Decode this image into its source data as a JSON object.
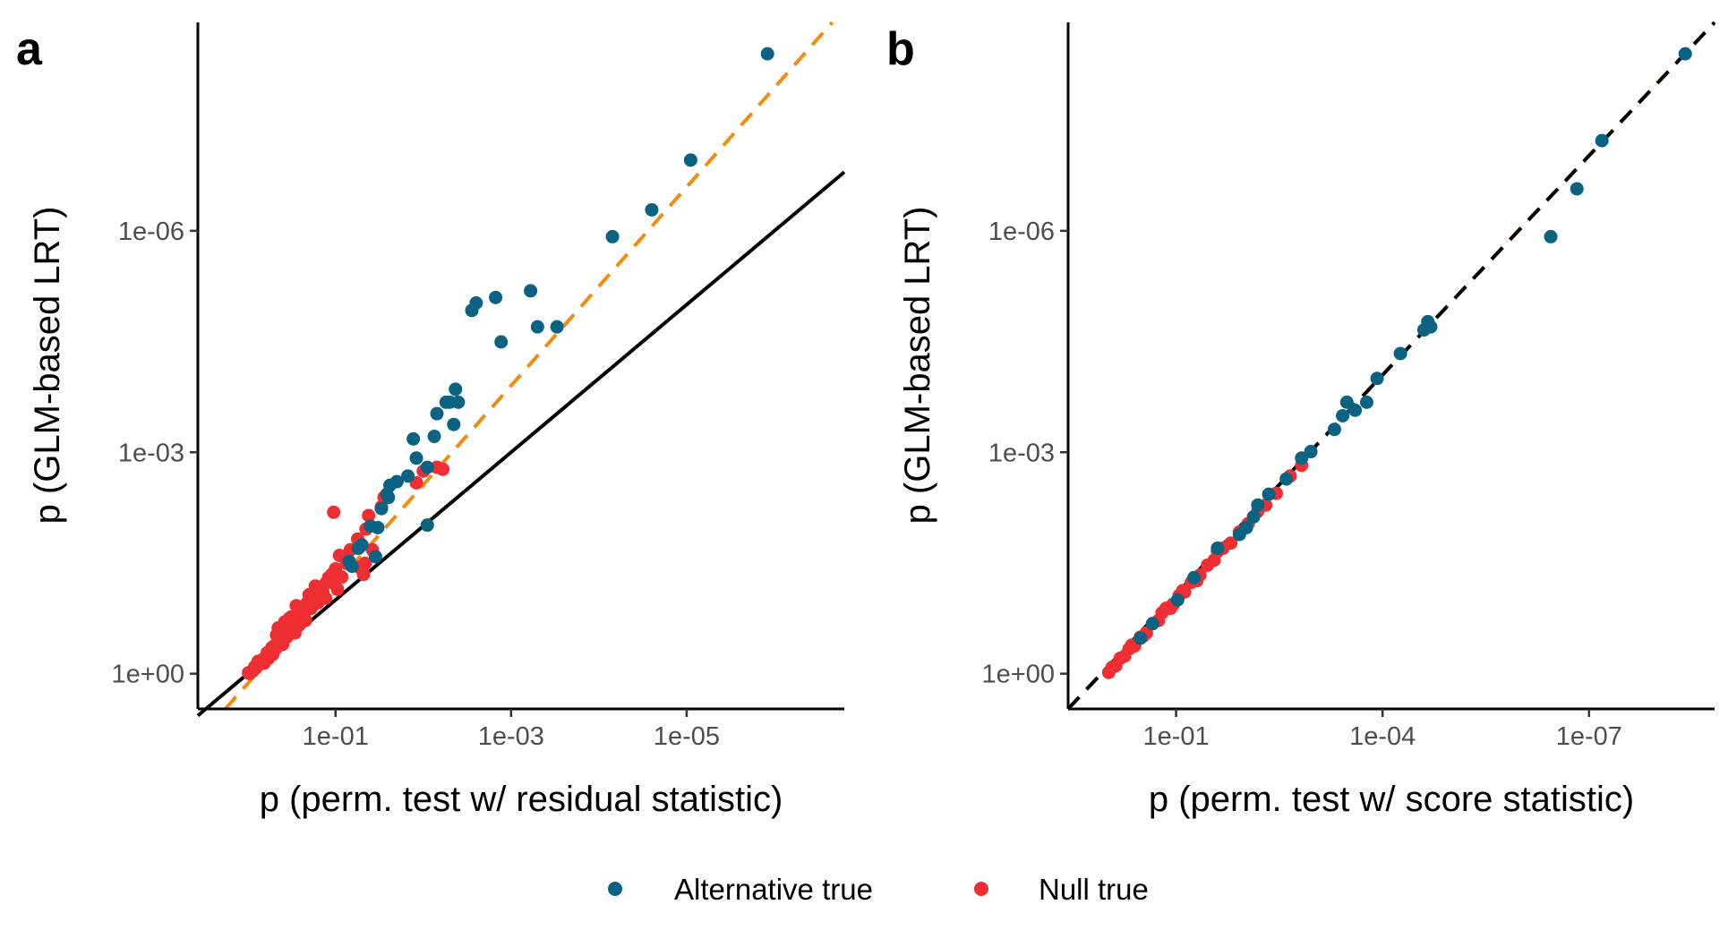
{
  "legend": [
    {
      "label": "Alternative true",
      "color": "#0b6384"
    },
    {
      "label": "Null true",
      "color": "#ee2e31"
    }
  ],
  "reference_line_colors": {
    "identity": "#000000",
    "fit": "#f28c0f"
  },
  "chart_data": [
    {
      "panel": "a",
      "type": "scatter",
      "title": "",
      "xlabel": "p (perm. test w/ residual statistic)",
      "ylabel": "p (GLM-based LRT)",
      "x_scale": "reverse-log10",
      "y_scale": "reverse-log10",
      "xlim": [
        3.7,
        1.6e-07
      ],
      "ylim": [
        3.0,
        1.5e-09
      ],
      "x_ticks": [
        0.1,
        0.001,
        1e-05
      ],
      "x_tick_labels": [
        "1e-01",
        "1e-03",
        "1e-05"
      ],
      "y_ticks": [
        1,
        0.001,
        1e-06
      ],
      "y_tick_labels": [
        "1e+00",
        "1e-03",
        "1e-06"
      ],
      "grid": false,
      "legend_position": "bottom",
      "lines": [
        {
          "kind": "identity",
          "style": "solid",
          "color": "#000000",
          "x": [
            3.7,
            1.6e-07
          ],
          "y": [
            3.7,
            1.6e-07
          ]
        },
        {
          "kind": "fit",
          "style": "dashed",
          "color": "#f28c0f",
          "x": [
            1.8,
            2.2e-07
          ],
          "y": [
            3.0,
            1.5e-09
          ]
        }
      ],
      "series": [
        {
          "name": "Alternative true",
          "color": "#0b6384",
          "x": [
            1.2e-06,
            9e-06,
            2.5e-05,
            7e-05,
            0.0003,
            0.0005,
            0.0006,
            0.0013,
            0.0015,
            0.0025,
            0.0028,
            0.004,
            0.0043,
            0.005,
            0.0055,
            0.007,
            0.0045,
            0.0075,
            0.013,
            0.012,
            0.009,
            0.015,
            0.02,
            0.024,
            0.026,
            0.025,
            0.03,
            0.009,
            0.04,
            0.033,
            0.055,
            0.07,
            0.065,
            0.035,
            0.05
          ],
          "y": [
            4e-09,
            1.1e-07,
            5.2e-07,
            1.2e-06,
            2e-05,
            2e-05,
            6.5e-06,
            3.2e-05,
            8e-06,
            9.5e-06,
            1.2e-05,
            0.00021,
            0.00014,
            0.00021,
            0.00021,
            0.0003,
            0.00042,
            0.00061,
            0.00066,
            0.0012,
            0.0016,
            0.0021,
            0.0025,
            0.0028,
            0.0037,
            0.0041,
            0.0058,
            0.0097,
            0.01,
            0.0105,
            0.02,
            0.03,
            0.035,
            0.026,
            0.018
          ]
        },
        {
          "name": "Null true",
          "color": "#ee2e31",
          "x": [
            0.01,
            0.007,
            0.006,
            0.012,
            0.028,
            0.03,
            0.042,
            0.045,
            0.056,
            0.038,
            0.046,
            0.054,
            0.048,
            0.105,
            0.068,
            0.09,
            0.075,
            0.1,
            0.085,
            0.11,
            0.12,
            0.13,
            0.095,
            0.14,
            0.15,
            0.16,
            0.18,
            0.21,
            0.24,
            0.28,
            0.32,
            0.38,
            0.45,
            0.22,
            0.26,
            0.3,
            0.35,
            0.42,
            0.5,
            0.55,
            0.62,
            0.7,
            0.78,
            0.85,
            0.92,
            0.96,
            0.58,
            0.65,
            0.88,
            0.2,
            0.17,
            0.19,
            0.13,
            0.23,
            0.27,
            0.33,
            0.29,
            0.36,
            0.4,
            0.48,
            0.52,
            0.6,
            0.67,
            0.74,
            0.81,
            0.9,
            0.98,
            0.44,
            0.25,
            0.16,
            0.14,
            0.11,
            0.34,
            0.31,
            0.47,
            0.53,
            0.76,
            0.83
          ],
          "y": [
            0.0018,
            0.0016,
            0.0017,
            0.0026,
            0.0041,
            0.0055,
            0.0072,
            0.011,
            0.015,
            0.021,
            0.032,
            0.036,
            0.045,
            0.0065,
            0.021,
            0.025,
            0.032,
            0.038,
            0.049,
            0.045,
            0.05,
            0.06,
            0.072,
            0.085,
            0.1,
            0.068,
            0.09,
            0.11,
            0.14,
            0.12,
            0.17,
            0.2,
            0.24,
            0.19,
            0.22,
            0.26,
            0.3,
            0.36,
            0.42,
            0.5,
            0.58,
            0.66,
            0.78,
            0.88,
            0.95,
            0.99,
            0.62,
            0.72,
            0.92,
            0.085,
            0.065,
            0.13,
            0.095,
            0.16,
            0.15,
            0.23,
            0.28,
            0.32,
            0.4,
            0.46,
            0.55,
            0.52,
            0.7,
            0.75,
            0.84,
            0.93,
            0.97,
            0.34,
            0.2,
            0.11,
            0.078,
            0.058,
            0.18,
            0.27,
            0.3,
            0.44,
            0.68,
            0.8
          ]
        }
      ]
    },
    {
      "panel": "b",
      "type": "scatter",
      "title": "",
      "xlabel": "p (perm. test w/ score statistic)",
      "ylabel": "p (GLM-based LRT)",
      "x_scale": "reverse-log10",
      "y_scale": "reverse-log10",
      "xlim": [
        3.7,
        1.5e-09
      ],
      "ylim": [
        3.0,
        1.5e-09
      ],
      "x_ticks": [
        0.1,
        0.0001,
        1e-07
      ],
      "x_tick_labels": [
        "1e-01",
        "1e-04",
        "1e-07"
      ],
      "y_ticks": [
        1,
        0.001,
        1e-06
      ],
      "y_tick_labels": [
        "1e+00",
        "1e-03",
        "1e-06"
      ],
      "grid": false,
      "legend_position": "bottom",
      "lines": [
        {
          "kind": "fit",
          "style": "dashed",
          "color": "#f28c0f",
          "x": [
            3.7,
            1.5e-09
          ],
          "y": [
            3.0,
            1.5e-09
          ]
        },
        {
          "kind": "identity",
          "style": "dashed",
          "color": "#000000",
          "x": [
            3.7,
            1.5e-09
          ],
          "y": [
            3.0,
            1.5e-09
          ]
        }
      ],
      "series": [
        {
          "name": "Alternative true",
          "color": "#0b6384",
          "x": [
            4e-09,
            6.5e-08,
            1.5e-07,
            3.6e-07,
            2e-05,
            2.2e-05,
            2.5e-05,
            5.5e-05,
            0.00012,
            0.00017,
            0.00025,
            0.00033,
            0.00038,
            0.0005,
            0.0011,
            0.0015,
            0.0025,
            0.0045,
            0.0065,
            0.0075,
            0.0095,
            0.012,
            0.025,
            0.055,
            0.095,
            0.22,
            0.33
          ],
          "y": [
            4e-09,
            6e-08,
            2.7e-07,
            1.2e-06,
            2e-05,
            1.7e-05,
            2.2e-05,
            4.6e-05,
            0.0001,
            0.00021,
            0.00027,
            0.00021,
            0.00032,
            0.00049,
            0.00098,
            0.0012,
            0.0023,
            0.0037,
            0.0052,
            0.0075,
            0.0105,
            0.013,
            0.02,
            0.05,
            0.1,
            0.21,
            0.33
          ]
        },
        {
          "name": "Null true",
          "color": "#ee2e31",
          "x": [
            0.0015,
            0.0022,
            0.0035,
            0.005,
            0.0065,
            0.009,
            0.012,
            0.016,
            0.021,
            0.028,
            0.035,
            0.045,
            0.06,
            0.075,
            0.09,
            0.11,
            0.14,
            0.18,
            0.22,
            0.27,
            0.33,
            0.4,
            0.48,
            0.56,
            0.65,
            0.75,
            0.85,
            0.95,
            0.025,
            0.05,
            0.08,
            0.12,
            0.16,
            0.3,
            0.44
          ],
          "y": [
            0.0015,
            0.0021,
            0.0036,
            0.0052,
            0.0063,
            0.0093,
            0.012,
            0.017,
            0.02,
            0.029,
            0.034,
            0.046,
            0.058,
            0.078,
            0.087,
            0.115,
            0.13,
            0.19,
            0.21,
            0.28,
            0.32,
            0.42,
            0.46,
            0.58,
            0.62,
            0.78,
            0.82,
            0.96,
            0.022,
            0.055,
            0.075,
            0.13,
            0.15,
            0.31,
            0.41
          ]
        }
      ]
    }
  ]
}
